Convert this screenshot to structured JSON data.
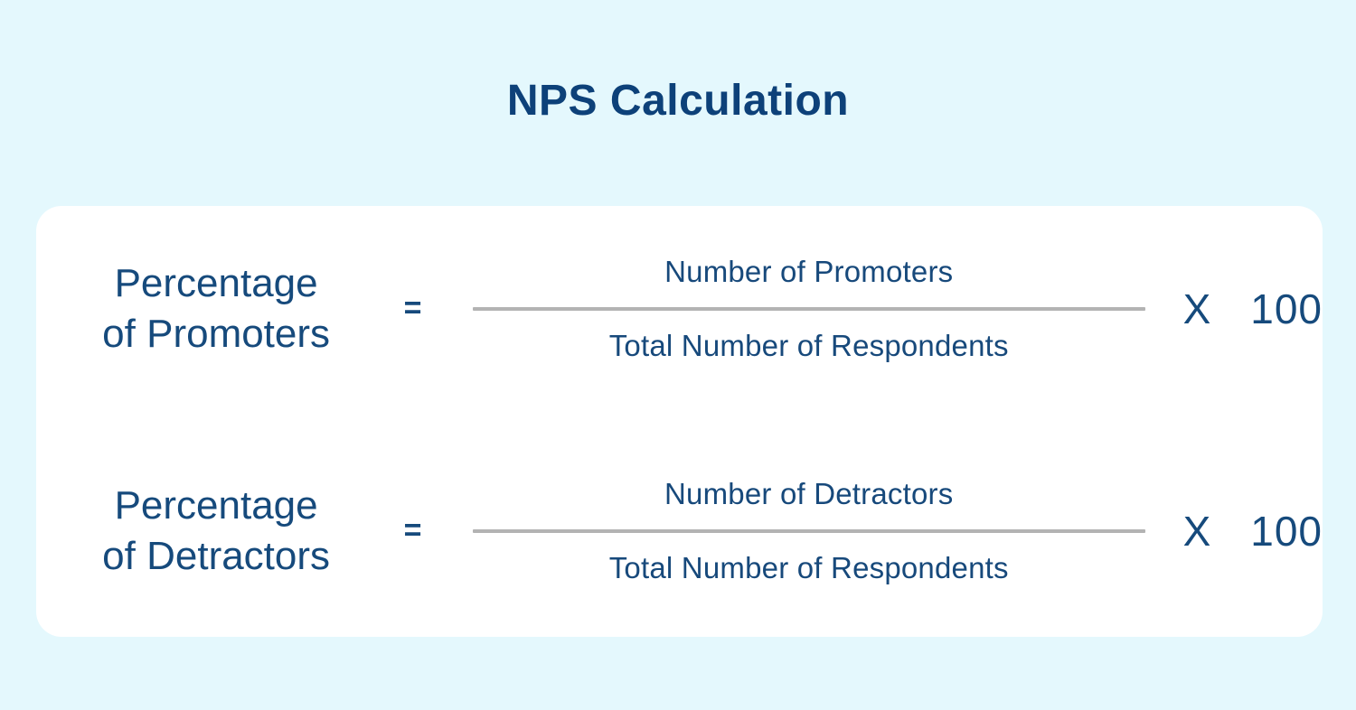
{
  "page": {
    "title": "NPS Calculation",
    "background_color": "#e4f8fd",
    "card_color": "#ffffff",
    "title_color": "#0d4179",
    "text_color": "#164a7c",
    "divider_color": "#b3b3b3"
  },
  "formulas": [
    {
      "label_line1": "Percentage",
      "label_line2": "of Promoters",
      "equals": "=",
      "numerator": "Number of Promoters",
      "denominator": "Total Number of Respondents",
      "multiply": "X",
      "factor": "100"
    },
    {
      "label_line1": "Percentage",
      "label_line2": "of Detractors",
      "equals": "=",
      "numerator": "Number of Detractors",
      "denominator": "Total Number of Respondents",
      "multiply": "X",
      "factor": "100"
    }
  ]
}
